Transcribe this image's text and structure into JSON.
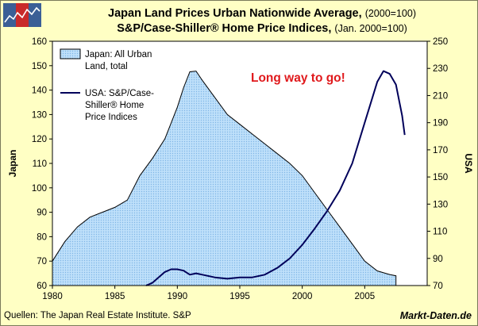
{
  "header": {
    "title_main": "Japan Land Prices Urban Nationwide Average,",
    "title_main_note": "(2000=100)",
    "title_sub": "S&P/Case-Shiller® Home Price Indices,",
    "title_sub_note": "(Jan. 2000=100)"
  },
  "footer": {
    "source": "Quellen: The Japan Real Estate Institute. S&P",
    "brand": "Markt-Daten.de"
  },
  "colors": {
    "background": "#ffffc4",
    "plot_background": "#ffffff",
    "japan_fill": "#b7dcf8",
    "japan_outline": "#000000",
    "usa_line": "#00005a",
    "annotation": "#e0191c"
  },
  "icons": {
    "logo": "chart-logo-icon"
  },
  "chart_data": {
    "type": "area",
    "title": "Japan Land Prices Urban Nationwide Average, (2000=100) S&P/Case-Shiller® Home Price Indices, (Jan. 2000=100)",
    "xlabel": "",
    "ylabel": "Japan",
    "y2label": "USA",
    "xlim": [
      1980,
      2010
    ],
    "ylim": [
      60,
      160
    ],
    "y2lim": [
      70,
      250
    ],
    "xticks": [
      1980,
      1985,
      1990,
      1995,
      2000,
      2005
    ],
    "yticks": [
      60,
      70,
      80,
      90,
      100,
      110,
      120,
      130,
      140,
      150,
      160
    ],
    "y2ticks": [
      70,
      90,
      110,
      130,
      150,
      170,
      190,
      210,
      230,
      250
    ],
    "grid": false,
    "legend_position": "top-left",
    "annotation": "Long way to go!",
    "series": [
      {
        "name": "Japan: All Urban Land, total",
        "type": "area",
        "axis": "left",
        "x": [
          1980,
          1981,
          1982,
          1983,
          1984,
          1985,
          1986,
          1987,
          1988,
          1989,
          1990,
          1990.5,
          1991,
          1991.5,
          1992,
          1993,
          1994,
          1995,
          1996,
          1997,
          1998,
          1999,
          2000,
          2001,
          2002,
          2003,
          2004,
          2005,
          2006,
          2007,
          2007.5
        ],
        "values": [
          70,
          78,
          84,
          88,
          90,
          92,
          95,
          105,
          112,
          120,
          133,
          141,
          147.5,
          147.8,
          144,
          137,
          130,
          126,
          122,
          118,
          114,
          110,
          105,
          98,
          91,
          84,
          77,
          70,
          66,
          64.5,
          64
        ]
      },
      {
        "name": "USA: S&P/Case-Shiller® Home Price Indices",
        "type": "line",
        "axis": "right",
        "x": [
          1987.5,
          1988,
          1988.5,
          1989,
          1989.5,
          1990,
          1990.5,
          1991,
          1991.5,
          1992,
          1993,
          1994,
          1995,
          1996,
          1997,
          1998,
          1999,
          2000,
          2001,
          2002,
          2003,
          2004,
          2005,
          2006,
          2006.5,
          2007,
          2007.5,
          2008,
          2008.2
        ],
        "values": [
          70,
          72,
          76,
          80,
          82,
          82,
          81,
          78,
          79,
          78,
          76,
          75,
          76,
          76,
          78,
          83,
          90,
          100,
          112,
          125,
          140,
          160,
          190,
          220,
          228,
          226,
          218,
          195,
          181
        ]
      }
    ]
  }
}
